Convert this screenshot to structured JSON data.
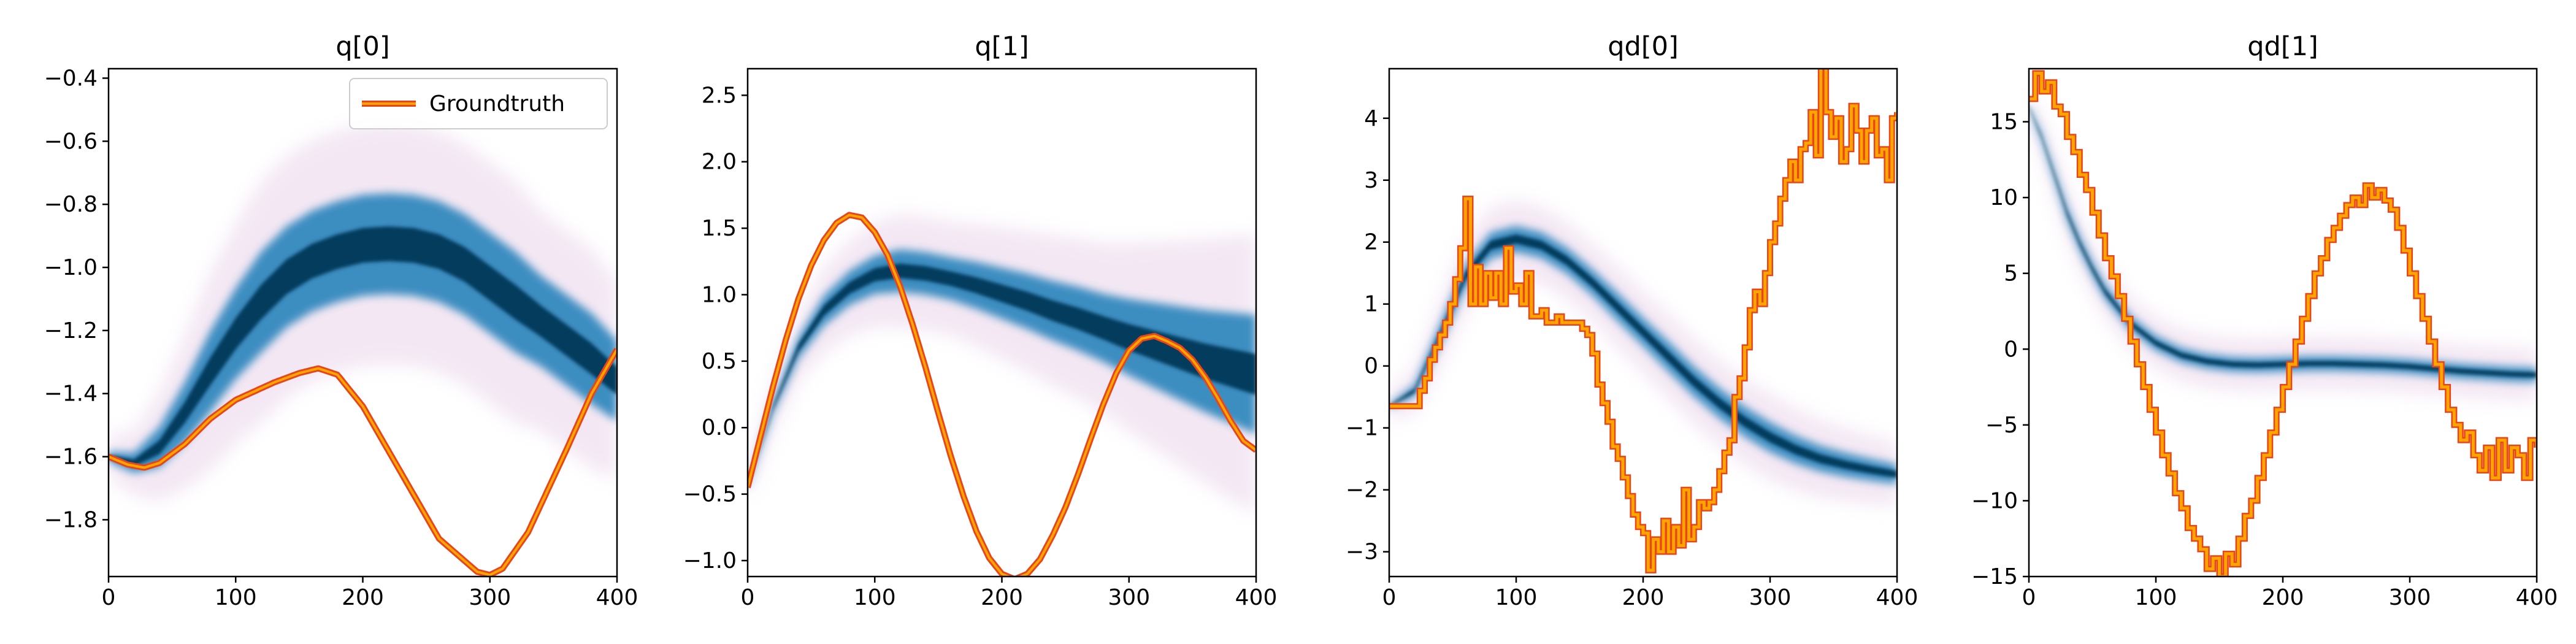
{
  "chart_data": [
    {
      "type": "line",
      "title": "q[0]",
      "xlabel": "",
      "ylabel": "",
      "xlim": [
        0,
        400
      ],
      "ylim": [
        -1.98,
        -0.37
      ],
      "xticks": [
        0,
        100,
        200,
        300,
        400
      ],
      "yticks": [
        -1.8,
        -1.6,
        -1.4,
        -1.2,
        -1.0,
        -0.8,
        -0.6,
        -0.4
      ],
      "ytick_labels": [
        "−1.8",
        "−1.6",
        "−1.4",
        "−1.2",
        "−1.0",
        "−0.8",
        "−0.6",
        "−0.4"
      ],
      "legend": {
        "position": "top-right",
        "entries": [
          "Groundtruth"
        ]
      },
      "groundtruth": {
        "x": [
          0,
          15,
          28,
          40,
          60,
          80,
          100,
          130,
          150,
          165,
          180,
          200,
          230,
          260,
          290,
          300,
          310,
          330,
          360,
          380,
          400
        ],
        "y": [
          -1.6,
          -1.625,
          -1.635,
          -1.62,
          -1.56,
          -1.48,
          -1.42,
          -1.365,
          -1.335,
          -1.32,
          -1.34,
          -1.44,
          -1.65,
          -1.86,
          -1.965,
          -1.975,
          -1.955,
          -1.84,
          -1.58,
          -1.4,
          -1.26
        ]
      },
      "prediction_band": {
        "x": [
          0,
          20,
          40,
          60,
          80,
          100,
          120,
          140,
          160,
          180,
          200,
          220,
          240,
          260,
          280,
          300,
          320,
          340,
          360,
          380,
          400
        ],
        "y": [
          -1.6,
          -1.62,
          -1.57,
          -1.46,
          -1.33,
          -1.21,
          -1.11,
          -1.03,
          -0.98,
          -0.95,
          -0.93,
          -0.925,
          -0.93,
          -0.95,
          -0.99,
          -1.05,
          -1.11,
          -1.17,
          -1.23,
          -1.29,
          -1.36
        ],
        "width": [
          0.01,
          0.02,
          0.04,
          0.06,
          0.08,
          0.09,
          0.1,
          0.1,
          0.1,
          0.1,
          0.1,
          0.1,
          0.1,
          0.1,
          0.1,
          0.1,
          0.1,
          0.09,
          0.09,
          0.09,
          0.08
        ]
      }
    },
    {
      "type": "line",
      "title": "q[1]",
      "xlabel": "",
      "ylabel": "",
      "xlim": [
        0,
        400
      ],
      "ylim": [
        -1.12,
        2.7
      ],
      "xticks": [
        0,
        100,
        200,
        300,
        400
      ],
      "yticks": [
        -1.0,
        -0.5,
        0.0,
        0.5,
        1.0,
        1.5,
        2.0,
        2.5
      ],
      "ytick_labels": [
        "−1.0",
        "−0.5",
        "0.0",
        "0.5",
        "1.0",
        "1.5",
        "2.0",
        "2.5"
      ],
      "groundtruth": {
        "x": [
          0,
          10,
          20,
          30,
          40,
          50,
          60,
          70,
          80,
          90,
          100,
          110,
          120,
          130,
          140,
          150,
          160,
          170,
          180,
          190,
          200,
          210,
          220,
          230,
          240,
          250,
          260,
          270,
          280,
          290,
          300,
          310,
          320,
          330,
          340,
          350,
          360,
          370,
          380,
          390,
          400
        ],
        "y": [
          -0.45,
          -0.07,
          0.31,
          0.66,
          0.97,
          1.22,
          1.41,
          1.54,
          1.6,
          1.58,
          1.47,
          1.3,
          1.06,
          0.77,
          0.45,
          0.11,
          -0.22,
          -0.52,
          -0.78,
          -0.98,
          -1.1,
          -1.14,
          -1.1,
          -0.99,
          -0.81,
          -0.6,
          -0.35,
          -0.08,
          0.18,
          0.41,
          0.58,
          0.67,
          0.69,
          0.65,
          0.6,
          0.51,
          0.38,
          0.22,
          0.05,
          -0.1,
          -0.17
        ]
      },
      "prediction_band": {
        "x": [
          0,
          20,
          40,
          60,
          80,
          100,
          120,
          140,
          160,
          180,
          200,
          220,
          240,
          260,
          280,
          300,
          320,
          340,
          360,
          380,
          400
        ],
        "y": [
          -0.45,
          0.15,
          0.6,
          0.88,
          1.05,
          1.15,
          1.18,
          1.16,
          1.12,
          1.07,
          1.01,
          0.95,
          0.88,
          0.82,
          0.75,
          0.68,
          0.62,
          0.56,
          0.5,
          0.45,
          0.4
        ],
        "width": [
          0.01,
          0.03,
          0.05,
          0.07,
          0.08,
          0.09,
          0.1,
          0.1,
          0.1,
          0.11,
          0.12,
          0.13,
          0.14,
          0.15,
          0.16,
          0.18,
          0.2,
          0.22,
          0.24,
          0.26,
          0.28
        ]
      }
    },
    {
      "type": "line",
      "title": "qd[0]",
      "xlabel": "",
      "ylabel": "",
      "xlim": [
        0,
        400
      ],
      "ylim": [
        -3.4,
        4.8
      ],
      "xticks": [
        0,
        100,
        200,
        300,
        400
      ],
      "yticks": [
        -3,
        -2,
        -1,
        0,
        1,
        2,
        3,
        4
      ],
      "ytick_labels": [
        "−3",
        "−2",
        "−1",
        "0",
        "1",
        "2",
        "3",
        "4"
      ],
      "groundtruth_steps": {
        "x": [
          0,
          22,
          24,
          28,
          32,
          36,
          40,
          44,
          48,
          52,
          56,
          60,
          64,
          68,
          72,
          76,
          80,
          84,
          88,
          92,
          96,
          100,
          104,
          108,
          112,
          116,
          120,
          124,
          128,
          132,
          136,
          140,
          144,
          148,
          152,
          156,
          160,
          164,
          168,
          172,
          176,
          180,
          184,
          188,
          192,
          196,
          200,
          204,
          208,
          212,
          216,
          220,
          224,
          228,
          232,
          236,
          240,
          244,
          248,
          252,
          256,
          260,
          264,
          268,
          272,
          276,
          280,
          284,
          288,
          292,
          296,
          300,
          304,
          308,
          312,
          316,
          320,
          324,
          328,
          332,
          336,
          340,
          344,
          348,
          352,
          356,
          360,
          364,
          368,
          372,
          376,
          380,
          384,
          388,
          392,
          396,
          400
        ],
        "y": [
          -0.65,
          -0.65,
          -0.4,
          -0.2,
          0.1,
          0.3,
          0.5,
          0.7,
          1.0,
          1.4,
          1.9,
          2.7,
          1.0,
          1.6,
          1.0,
          1.5,
          1.1,
          1.5,
          1.0,
          1.9,
          1.2,
          1.3,
          1.0,
          1.5,
          0.8,
          0.8,
          0.9,
          0.7,
          0.7,
          0.8,
          0.7,
          0.7,
          0.7,
          0.7,
          0.6,
          0.5,
          0.2,
          -0.3,
          -0.6,
          -0.9,
          -1.3,
          -1.5,
          -1.8,
          -2.1,
          -2.4,
          -2.6,
          -2.7,
          -3.3,
          -2.8,
          -3.0,
          -2.5,
          -3.0,
          -2.6,
          -2.9,
          -2.0,
          -2.8,
          -2.6,
          -2.2,
          -2.3,
          -2.2,
          -2.0,
          -1.7,
          -1.4,
          -1.2,
          -0.5,
          -0.2,
          0.3,
          0.9,
          1.2,
          1.0,
          1.5,
          2.0,
          2.3,
          2.7,
          3.0,
          3.3,
          3.0,
          3.5,
          3.6,
          4.1,
          3.4,
          4.9,
          4.1,
          3.7,
          4.0,
          3.3,
          3.5,
          4.2,
          3.8,
          3.3,
          3.8,
          4.0,
          3.4,
          3.5,
          3.0,
          4.0,
          4.1
        ]
      },
      "prediction_band": {
        "x": [
          0,
          20,
          40,
          60,
          80,
          100,
          120,
          140,
          160,
          180,
          200,
          220,
          240,
          260,
          280,
          300,
          320,
          340,
          360,
          380,
          400
        ],
        "y": [
          -0.65,
          -0.4,
          0.5,
          1.45,
          1.95,
          2.05,
          1.95,
          1.7,
          1.35,
          0.95,
          0.55,
          0.15,
          -0.25,
          -0.6,
          -0.9,
          -1.15,
          -1.35,
          -1.5,
          -1.6,
          -1.68,
          -1.75
        ],
        "width": [
          0.02,
          0.06,
          0.1,
          0.12,
          0.13,
          0.13,
          0.13,
          0.13,
          0.13,
          0.14,
          0.14,
          0.15,
          0.15,
          0.15,
          0.15,
          0.15,
          0.14,
          0.13,
          0.12,
          0.11,
          0.1
        ]
      }
    },
    {
      "type": "line",
      "title": "qd[1]",
      "xlabel": "",
      "ylabel": "",
      "xlim": [
        0,
        400
      ],
      "ylim": [
        -15,
        18.5
      ],
      "xticks": [
        0,
        100,
        200,
        300,
        400
      ],
      "yticks": [
        -15,
        -10,
        -5,
        0,
        5,
        10,
        15
      ],
      "ytick_labels": [
        "−15",
        "−10",
        "−5",
        "0",
        "5",
        "10",
        "15"
      ],
      "groundtruth_steps": {
        "x": [
          0,
          5,
          10,
          15,
          20,
          25,
          30,
          35,
          40,
          45,
          50,
          55,
          60,
          65,
          70,
          75,
          80,
          85,
          90,
          95,
          100,
          105,
          110,
          115,
          120,
          125,
          130,
          135,
          140,
          145,
          150,
          155,
          160,
          165,
          170,
          175,
          180,
          185,
          190,
          195,
          200,
          205,
          210,
          215,
          220,
          225,
          230,
          235,
          240,
          245,
          250,
          255,
          260,
          265,
          270,
          275,
          280,
          285,
          290,
          295,
          300,
          305,
          310,
          315,
          320,
          325,
          330,
          335,
          340,
          345,
          350,
          355,
          360,
          365,
          370,
          375,
          380,
          385,
          390,
          395,
          400
        ],
        "y": [
          16.5,
          18.2,
          17.0,
          17.6,
          16.0,
          15.5,
          14.0,
          13.0,
          11.5,
          10.5,
          9.0,
          7.5,
          6.0,
          4.8,
          3.5,
          2.0,
          0.5,
          -1.0,
          -2.5,
          -4.0,
          -5.5,
          -7.0,
          -8.2,
          -9.5,
          -10.5,
          -11.8,
          -12.5,
          -13.2,
          -14.5,
          -13.8,
          -15.0,
          -13.5,
          -14.2,
          -12.5,
          -11.0,
          -10.0,
          -8.5,
          -7.0,
          -5.5,
          -4.0,
          -2.5,
          -1.0,
          0.5,
          2.0,
          3.5,
          5.0,
          6.0,
          7.2,
          8.0,
          8.8,
          9.5,
          10.0,
          9.5,
          10.8,
          10.0,
          10.5,
          9.8,
          9.2,
          8.0,
          6.5,
          5.0,
          3.5,
          2.0,
          0.5,
          -1.0,
          -2.5,
          -4.0,
          -5.0,
          -6.0,
          -5.5,
          -7.0,
          -8.0,
          -6.5,
          -8.5,
          -6.0,
          -8.0,
          -6.5,
          -7.0,
          -8.5,
          -6.0,
          -6.5
        ]
      },
      "prediction_band": {
        "x": [
          0,
          10,
          20,
          30,
          40,
          50,
          60,
          80,
          100,
          120,
          140,
          160,
          180,
          200,
          220,
          240,
          260,
          280,
          300,
          320,
          340,
          360,
          380,
          400
        ],
        "y": [
          16.0,
          14.0,
          11.5,
          9.0,
          7.0,
          5.3,
          3.8,
          1.7,
          0.4,
          -0.4,
          -0.8,
          -1.0,
          -1.05,
          -1.0,
          -0.95,
          -0.95,
          -1.0,
          -1.05,
          -1.15,
          -1.3,
          -1.45,
          -1.55,
          -1.65,
          -1.7
        ],
        "width": [
          0.1,
          0.2,
          0.25,
          0.3,
          0.3,
          0.3,
          0.3,
          0.3,
          0.3,
          0.3,
          0.3,
          0.3,
          0.3,
          0.3,
          0.3,
          0.3,
          0.3,
          0.3,
          0.3,
          0.3,
          0.3,
          0.3,
          0.3,
          0.3
        ]
      }
    }
  ],
  "colors": {
    "groundtruth_outline": "#e8451c",
    "groundtruth_fill": "#ffa500",
    "density_dark": "#023858",
    "density_mid": "#0570b0",
    "density_halo": "#e9d4ea"
  }
}
